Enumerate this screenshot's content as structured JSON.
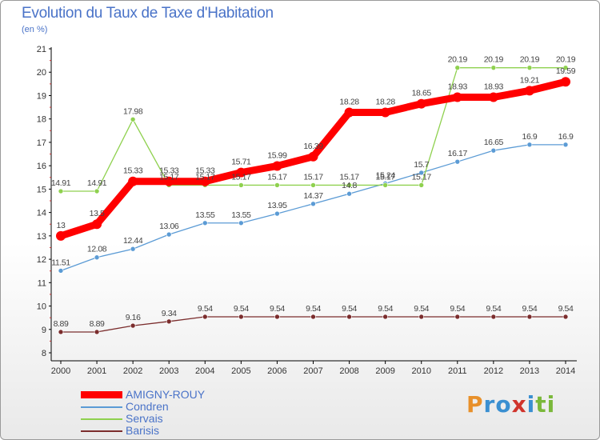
{
  "header": {
    "title": "Evolution du Taux de Taxe d'Habitation",
    "unit": "(en %)"
  },
  "logo": {
    "text": "Proxiti",
    "colors": [
      "#e8902a",
      "#3a8fd1",
      "#d0342c",
      "#7ab83a"
    ]
  },
  "chart_data": {
    "type": "line",
    "title": "Evolution du Taux de Taxe d'Habitation",
    "ylabel": "(en %)",
    "xlabel": "",
    "x": [
      "2000",
      "2001",
      "2002",
      "2003",
      "2004",
      "2005",
      "2006",
      "2007",
      "2008",
      "2009",
      "2010",
      "2011",
      "2012",
      "2013",
      "2014"
    ],
    "ylim": [
      8,
      21
    ],
    "yticks": [
      8,
      9,
      10,
      11,
      12,
      13,
      14,
      15,
      16,
      17,
      18,
      19,
      20,
      21
    ],
    "grid": false,
    "legend_position": "bottom-left",
    "series": [
      {
        "name": "AMIGNY-ROUY",
        "color": "#ff0000",
        "emphasis": true,
        "values": [
          13,
          13.5,
          15.33,
          15.33,
          15.33,
          15.71,
          15.99,
          16.39,
          18.28,
          18.28,
          18.65,
          18.93,
          18.93,
          19.21,
          19.59
        ],
        "labels": [
          "13",
          "13.5",
          "15.33",
          "15.33",
          "15.33",
          "15.71",
          "15.99",
          "16.39",
          "18.28",
          "18.28",
          "18.65",
          "18.93",
          "18.93",
          "19.21",
          "19.59"
        ]
      },
      {
        "name": "Condren",
        "color": "#5b9bd5",
        "values": [
          11.51,
          12.08,
          12.44,
          13.06,
          13.55,
          13.55,
          13.95,
          14.37,
          14.8,
          15.24,
          15.7,
          16.17,
          16.65,
          16.9,
          16.9
        ],
        "labels": [
          "11.51",
          "12.08",
          "12.44",
          "13.06",
          "13.55",
          "13.55",
          "13.95",
          "14.37",
          "14.8",
          "15.24",
          "15.7",
          "16.17",
          "16.65",
          "16.9",
          "16.9"
        ]
      },
      {
        "name": "Servais",
        "color": "#8fd14f",
        "values": [
          14.91,
          14.91,
          17.98,
          15.17,
          15.17,
          15.17,
          15.17,
          15.17,
          15.17,
          15.17,
          15.17,
          20.19,
          20.19,
          20.19,
          20.19
        ],
        "labels": [
          "14.91",
          "14.91",
          "17.98",
          "15.17",
          "15.17",
          "15.17",
          "15.17",
          "15.17",
          "15.17",
          "15.17",
          "15.17",
          "20.19",
          "20.19",
          "20.19",
          "20.19"
        ]
      },
      {
        "name": "Barisis",
        "color": "#7b2d2d",
        "values": [
          8.89,
          8.89,
          9.16,
          9.34,
          9.54,
          9.54,
          9.54,
          9.54,
          9.54,
          9.54,
          9.54,
          9.54,
          9.54,
          9.54,
          9.54
        ],
        "labels": [
          "8.89",
          "8.89",
          "9.16",
          "9.34",
          "9.54",
          "9.54",
          "9.54",
          "9.54",
          "9.54",
          "9.54",
          "9.54",
          "9.54",
          "9.54",
          "9.54",
          "9.54"
        ]
      }
    ]
  }
}
